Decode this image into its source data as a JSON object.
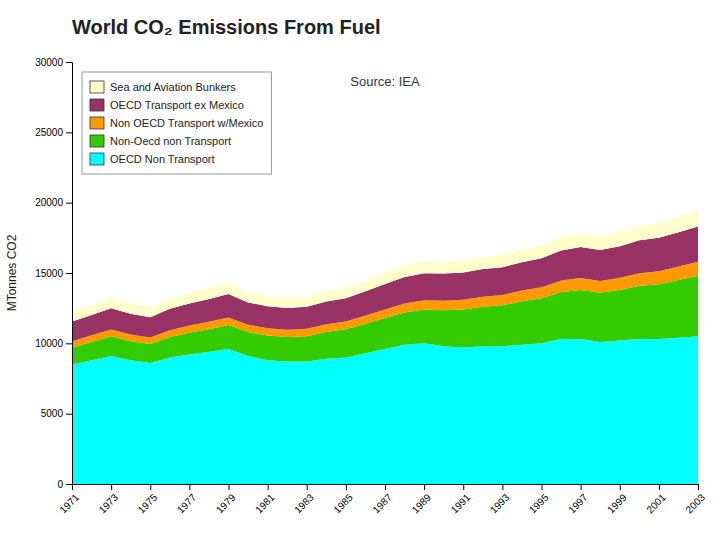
{
  "chart_data": {
    "type": "area",
    "stacked": true,
    "title": "World CO₂ Emissions From Fuel",
    "ylabel": "MTonnes CO2",
    "annotations": [
      "Source: IEA"
    ],
    "x": [
      1971,
      1972,
      1973,
      1974,
      1975,
      1976,
      1977,
      1978,
      1979,
      1980,
      1981,
      1982,
      1983,
      1984,
      1985,
      1986,
      1987,
      1988,
      1989,
      1990,
      1991,
      1992,
      1993,
      1994,
      1995,
      1996,
      1997,
      1998,
      1999,
      2000,
      2001,
      2002,
      2003
    ],
    "series": [
      {
        "name": "OECD Non Transport",
        "color": "#00FFFF",
        "values": [
          8500,
          8800,
          9100,
          8800,
          8600,
          9000,
          9200,
          9400,
          9600,
          9100,
          8800,
          8700,
          8700,
          8900,
          9000,
          9300,
          9600,
          9900,
          10000,
          9800,
          9700,
          9800,
          9800,
          9900,
          10000,
          10300,
          10300,
          10100,
          10200,
          10300,
          10300,
          10400,
          10500
        ]
      },
      {
        "name": "Non-Oecd non Transport",
        "color": "#33CC00",
        "values": [
          1200,
          1300,
          1400,
          1350,
          1350,
          1450,
          1550,
          1600,
          1700,
          1700,
          1750,
          1750,
          1800,
          1900,
          2000,
          2100,
          2200,
          2300,
          2400,
          2550,
          2700,
          2800,
          2900,
          3100,
          3200,
          3350,
          3500,
          3500,
          3600,
          3800,
          3900,
          4100,
          4300
        ]
      },
      {
        "name": "Non OECD Transport w/Mexico",
        "color": "#FF9900",
        "values": [
          450,
          470,
          490,
          470,
          460,
          480,
          510,
          530,
          540,
          530,
          520,
          520,
          530,
          550,
          560,
          580,
          610,
          640,
          660,
          680,
          700,
          720,
          740,
          760,
          790,
          820,
          850,
          840,
          860,
          890,
          920,
          960,
          1000
        ]
      },
      {
        "name": "OECD Transport ex Mexico",
        "color": "#993366",
        "values": [
          1400,
          1450,
          1500,
          1480,
          1450,
          1520,
          1580,
          1620,
          1660,
          1580,
          1560,
          1550,
          1570,
          1620,
          1650,
          1720,
          1800,
          1880,
          1930,
          1940,
          1940,
          1960,
          1970,
          2010,
          2060,
          2130,
          2200,
          2200,
          2250,
          2330,
          2380,
          2440,
          2500
        ]
      },
      {
        "name": "Sea and Aviation Bunkers",
        "color": "#FFFFCC",
        "values": [
          700,
          720,
          740,
          710,
          690,
          720,
          740,
          760,
          780,
          750,
          720,
          700,
          700,
          720,
          730,
          760,
          790,
          820,
          840,
          840,
          850,
          860,
          880,
          900,
          930,
          960,
          990,
          980,
          1000,
          1040,
          1060,
          1090,
          1120
        ]
      }
    ],
    "xlim": [
      1971,
      2003
    ],
    "xticks": [
      1971,
      1973,
      1975,
      1977,
      1979,
      1981,
      1983,
      1985,
      1987,
      1989,
      1991,
      1993,
      1995,
      1997,
      1999,
      2001,
      2003
    ],
    "ylim": [
      0,
      30000
    ],
    "yticks": [
      0,
      5000,
      10000,
      15000,
      20000,
      25000,
      30000
    ],
    "grid": false,
    "legend": "upper left"
  }
}
